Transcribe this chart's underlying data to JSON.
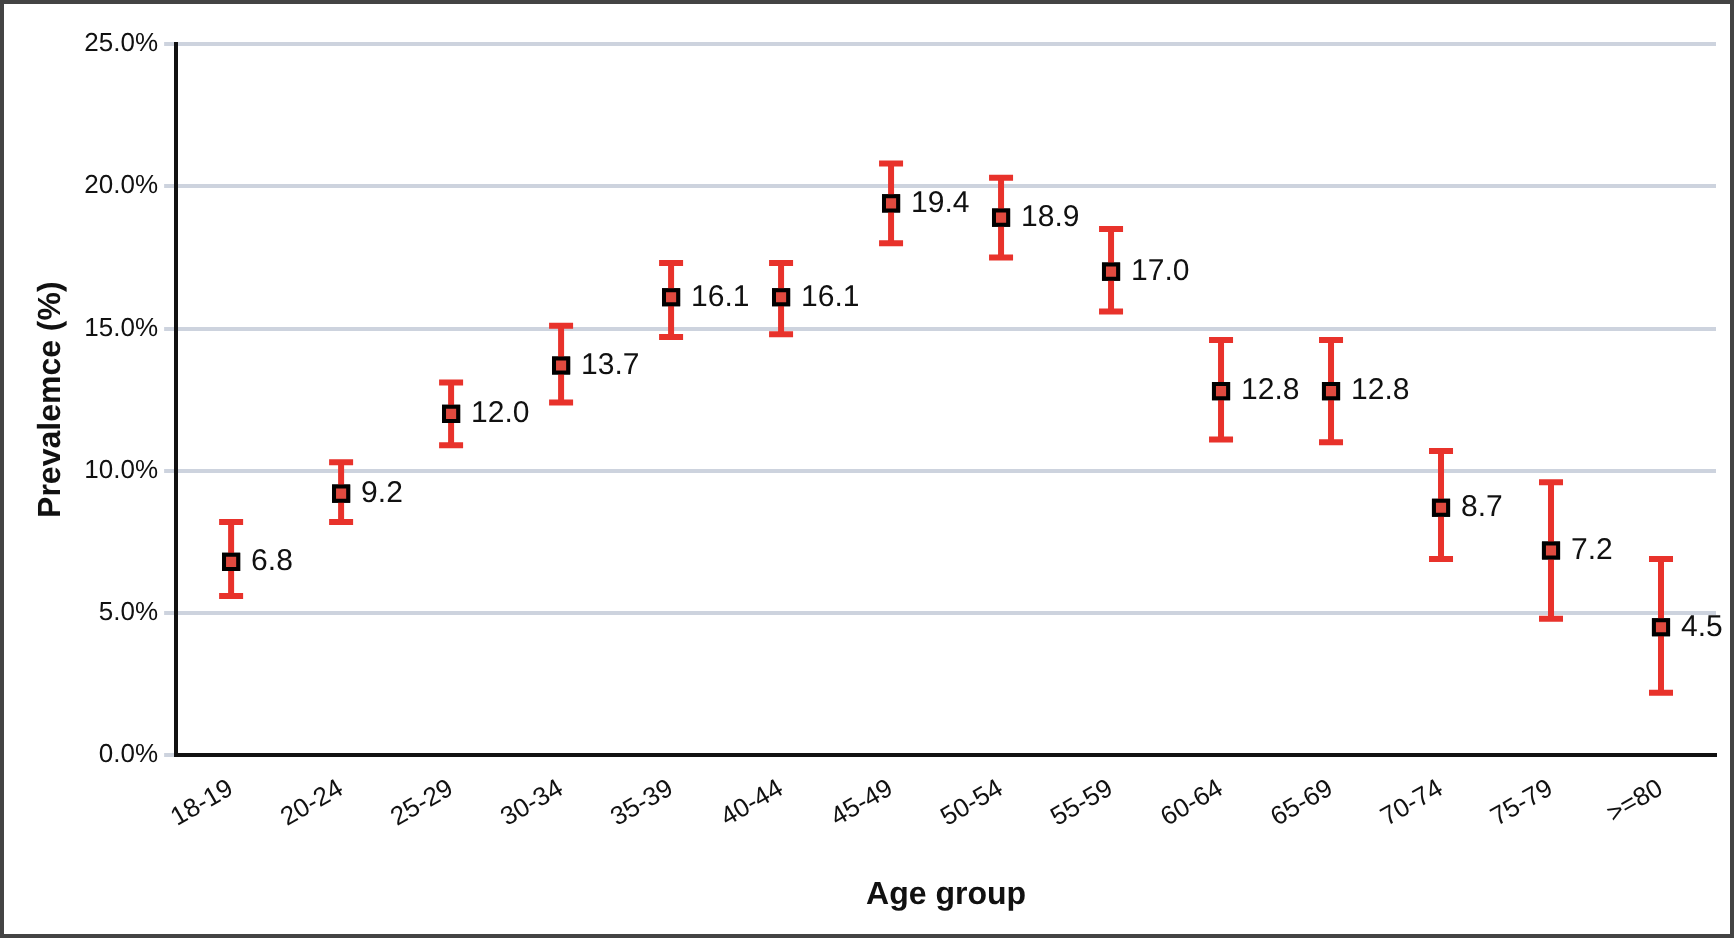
{
  "chart_data": {
    "type": "scatter",
    "xlabel": "Age group",
    "ylabel": "Prevalemce (%)",
    "categories": [
      "18-19",
      "20-24",
      "25-29",
      "30-34",
      "35-39",
      "40-44",
      "45-49",
      "50-54",
      "55-59",
      "60-64",
      "65-69",
      "70-74",
      "75-79",
      ">=80"
    ],
    "series": [
      {
        "color": "#000000",
        "values": [
          6.8,
          9.2,
          12.0,
          13.7,
          16.1,
          16.1,
          19.4,
          18.9,
          17.0,
          12.8,
          12.8,
          8.7,
          7.2,
          4.5
        ],
        "value_labels": [
          "6.8",
          "9.2",
          "12.0",
          "13.7",
          "16.1",
          "16.1",
          "19.4",
          "18.9",
          "17.0",
          "12.8",
          "12.8",
          "8.7",
          "7.2",
          "4.5"
        ],
        "errors": [
          [
            5.6,
            8.2
          ],
          [
            8.2,
            10.3
          ],
          [
            10.9,
            13.1
          ],
          [
            12.4,
            15.1
          ],
          [
            14.7,
            17.3
          ],
          [
            14.8,
            17.3
          ],
          [
            18.0,
            20.8
          ],
          [
            17.5,
            20.3
          ],
          [
            15.6,
            18.5
          ],
          [
            11.1,
            14.6
          ],
          [
            11.0,
            14.6
          ],
          [
            6.9,
            10.7
          ],
          [
            4.8,
            9.6
          ],
          [
            2.2,
            6.9
          ]
        ]
      }
    ],
    "ylim": [
      0,
      25
    ],
    "yticks": [
      {
        "value": 0,
        "label": "0.0%"
      },
      {
        "value": 5,
        "label": "5.0%"
      },
      {
        "value": 10,
        "label": "10.0%"
      },
      {
        "value": 15,
        "label": "15.0%"
      },
      {
        "value": 20,
        "label": "20.0%"
      },
      {
        "value": 25,
        "label": "25.0%"
      }
    ],
    "grid": "y",
    "marker": "square",
    "legend": false
  }
}
